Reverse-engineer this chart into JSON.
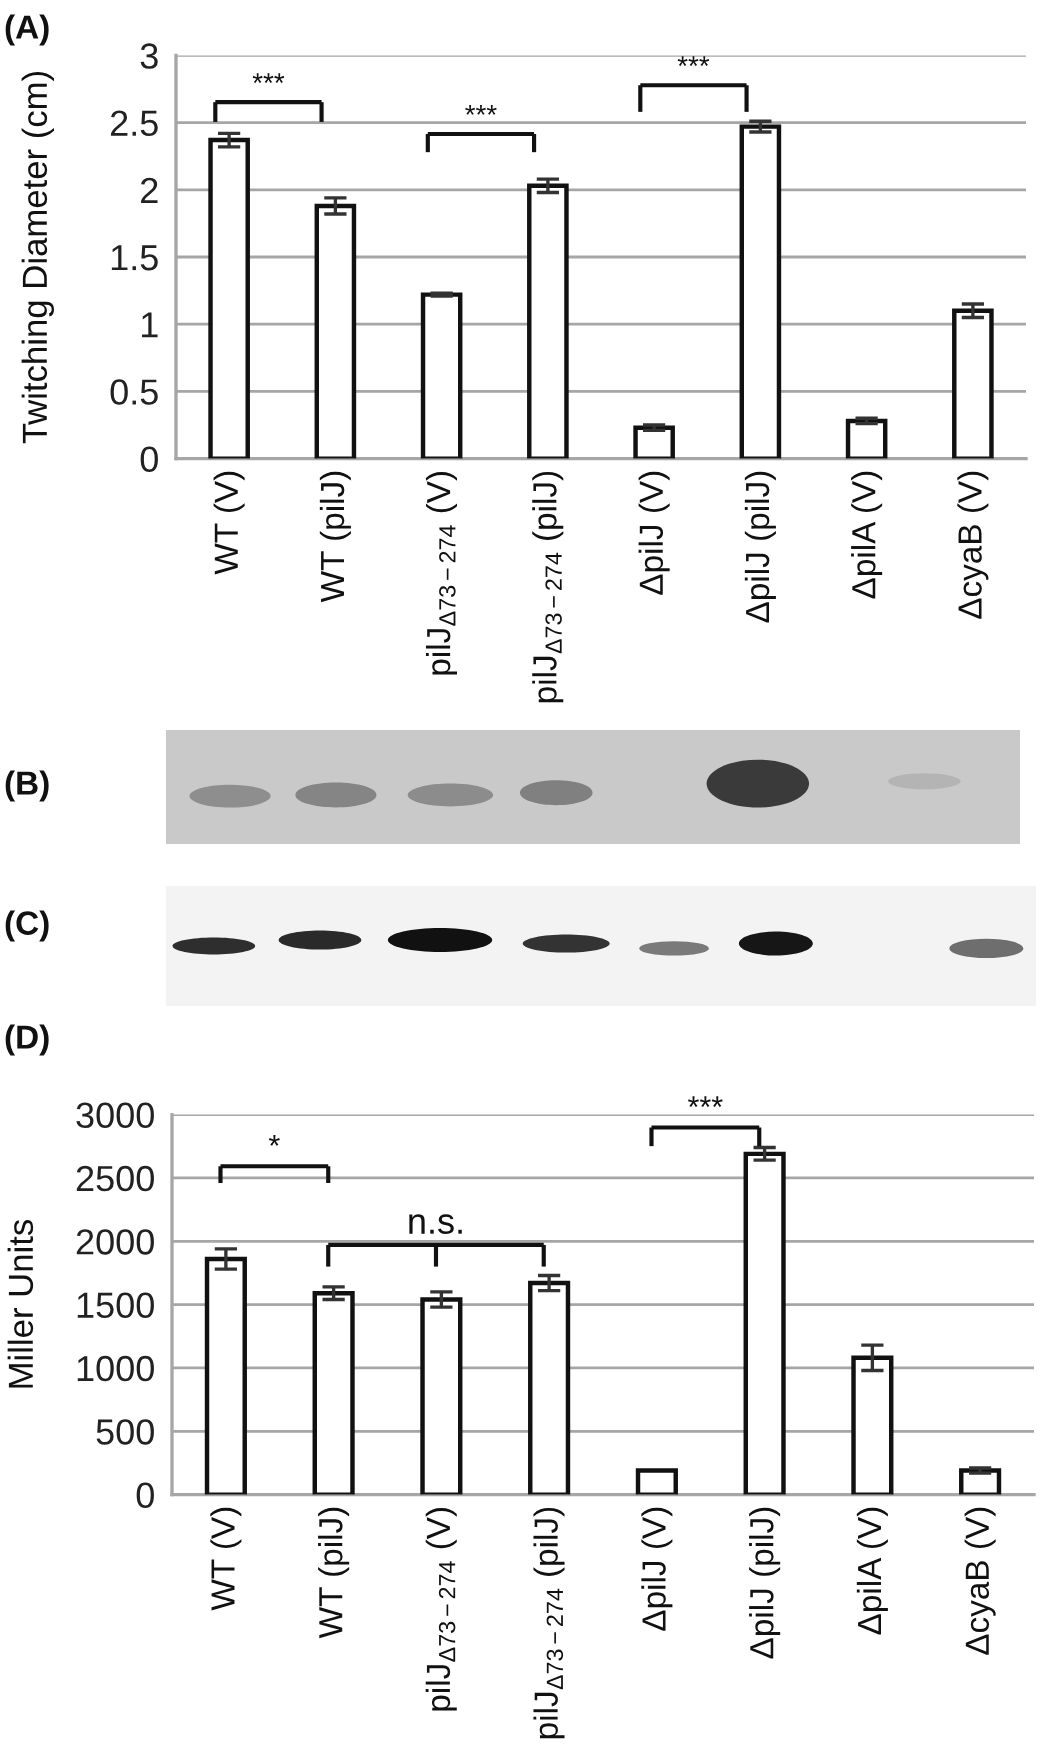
{
  "chart_data": [
    {
      "type": "bar",
      "title": "(A)",
      "ylabel": "Twitching Diameter (cm)",
      "categories": [
        "WT (V)",
        "WT (pilJ)",
        "pilJ$_{Δ73−274}$ (V)",
        "pilJ$_{Δ73−274}$ (pilJ)",
        "ΔpilJ (V)",
        "ΔpilJ (pilJ)",
        "ΔpilA (V)",
        "ΔcyaB (V)"
      ],
      "values": [
        2.37,
        1.88,
        1.22,
        2.03,
        0.23,
        2.47,
        0.28,
        1.1
      ],
      "errors": [
        0.05,
        0.06,
        0.01,
        0.05,
        0.02,
        0.04,
        0.02,
        0.05
      ],
      "color": "#ffffff",
      "ylim": [
        0,
        3
      ],
      "yticks": [
        0,
        0.5,
        1,
        1.5,
        2,
        2.5,
        3
      ],
      "grid": "y",
      "annotations": [
        "***",
        "***",
        "***"
      ]
    },
    {
      "type": "other",
      "title": "(B)"
    },
    {
      "type": "other",
      "title": "(C)"
    },
    {
      "type": "bar",
      "title": "(D)",
      "ylabel": "Miller Units",
      "categories": [
        "WT (V)",
        "WT (pilJ)",
        "pilJ$_{Δ73−274}$ (V)",
        "pilJ$_{Δ73−274}$ (pilJ)",
        "ΔpilJ (V)",
        "ΔpilJ (pilJ)",
        "ΔpilA (V)",
        "ΔcyaB (V)"
      ],
      "values": [
        1860,
        1590,
        1540,
        1670,
        190,
        2690,
        1080,
        190
      ],
      "errors": [
        80,
        50,
        60,
        60,
        null,
        50,
        100,
        20
      ],
      "color": "#ffffff",
      "ylim": [
        0,
        3000
      ],
      "yticks": [
        0,
        500,
        1000,
        1500,
        2000,
        2500,
        3000
      ],
      "grid": "y",
      "annotations": [
        "*",
        "n.s.",
        "***"
      ]
    }
  ]
}
